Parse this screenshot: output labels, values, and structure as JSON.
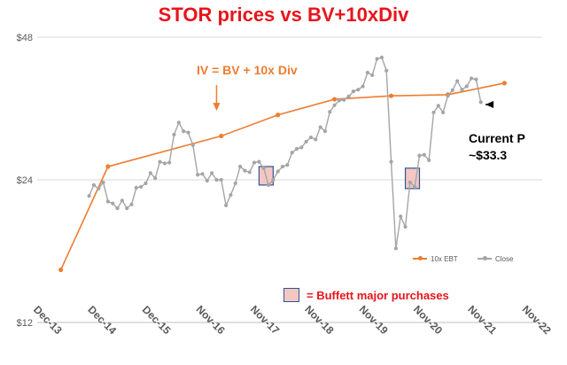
{
  "chart_data": {
    "type": "line",
    "title": "STOR prices vs BV+10xDiv",
    "x_tick_labels": [
      "Dec-13",
      "Dec-14",
      "Dec-15",
      "Nov-16",
      "Nov-17",
      "Nov-18",
      "Nov-19",
      "Nov-20",
      "Nov-21",
      "Nov-22"
    ],
    "y_tick_labels": [
      "$12",
      "$24",
      "$48"
    ],
    "y_scale": "log",
    "ylim": [
      12,
      48
    ],
    "series": [
      {
        "name": "10x EBT",
        "color": "#ed7d31",
        "points": [
          [
            "2014-05",
            15.5
          ],
          [
            "2015-03",
            25.6
          ],
          [
            "2017-03",
            29.7
          ],
          [
            "2018-03",
            32.9
          ],
          [
            "2019-03",
            35.5
          ],
          [
            "2020-03",
            36.1
          ],
          [
            "2021-03",
            36.3
          ],
          [
            "2022-03",
            38.4
          ]
        ]
      },
      {
        "name": "Close",
        "color": "#a5a5a5",
        "points": [
          [
            "2014-11",
            22.2
          ],
          [
            "2014-12",
            23.4
          ],
          [
            "2015-01",
            23.0
          ],
          [
            "2015-02",
            23.7
          ],
          [
            "2015-03",
            21.6
          ],
          [
            "2015-04",
            21.4
          ],
          [
            "2015-05",
            20.9
          ],
          [
            "2015-06",
            21.7
          ],
          [
            "2015-07",
            20.9
          ],
          [
            "2015-08",
            21.3
          ],
          [
            "2015-09",
            23.1
          ],
          [
            "2015-10",
            23.2
          ],
          [
            "2015-11",
            23.6
          ],
          [
            "2015-12",
            24.8
          ],
          [
            "2016-01",
            24.2
          ],
          [
            "2016-02",
            26.2
          ],
          [
            "2016-03",
            26.0
          ],
          [
            "2016-04",
            26.1
          ],
          [
            "2016-05",
            29.9
          ],
          [
            "2016-06",
            31.7
          ],
          [
            "2016-07",
            30.4
          ],
          [
            "2016-08",
            30.2
          ],
          [
            "2016-09",
            28.4
          ],
          [
            "2016-10",
            24.6
          ],
          [
            "2016-11",
            24.7
          ],
          [
            "2016-12",
            23.9
          ],
          [
            "2017-01",
            24.8
          ],
          [
            "2017-02",
            24.0
          ],
          [
            "2017-03",
            24.0
          ],
          [
            "2017-04",
            21.2
          ],
          [
            "2017-05",
            22.3
          ],
          [
            "2017-06",
            23.6
          ],
          [
            "2017-07",
            25.6
          ],
          [
            "2017-08",
            25.1
          ],
          [
            "2017-09",
            24.9
          ],
          [
            "2017-10",
            26.1
          ],
          [
            "2017-11",
            26.2
          ],
          [
            "2017-12",
            25.4
          ],
          [
            "2018-01",
            23.4
          ],
          [
            "2018-02",
            24.0
          ],
          [
            "2018-03",
            25.0
          ],
          [
            "2018-04",
            25.6
          ],
          [
            "2018-05",
            25.8
          ],
          [
            "2018-06",
            27.4
          ],
          [
            "2018-07",
            27.9
          ],
          [
            "2018-08",
            28.1
          ],
          [
            "2018-09",
            28.9
          ],
          [
            "2018-10",
            29.5
          ],
          [
            "2018-11",
            29.2
          ],
          [
            "2018-12",
            31.0
          ],
          [
            "2019-01",
            30.4
          ],
          [
            "2019-02",
            33.4
          ],
          [
            "2019-03",
            34.5
          ],
          [
            "2019-04",
            35.3
          ],
          [
            "2019-05",
            35.4
          ],
          [
            "2019-06",
            36.0
          ],
          [
            "2019-07",
            36.9
          ],
          [
            "2019-08",
            37.2
          ],
          [
            "2019-09",
            37.8
          ],
          [
            "2019-10",
            40.4
          ],
          [
            "2019-11",
            39.9
          ],
          [
            "2019-12",
            43.2
          ],
          [
            "2020-01",
            43.5
          ],
          [
            "2020-02",
            40.8
          ],
          [
            "2020-03",
            26.2
          ],
          [
            "2020-04",
            17.2
          ],
          [
            "2020-05",
            20.1
          ],
          [
            "2020-06",
            19.1
          ],
          [
            "2020-07",
            23.7
          ],
          [
            "2020-08",
            23.2
          ],
          [
            "2020-09",
            27.0
          ],
          [
            "2020-10",
            27.1
          ],
          [
            "2020-11",
            26.4
          ],
          [
            "2020-12",
            33.3
          ],
          [
            "2021-01",
            34.4
          ],
          [
            "2021-02",
            33.3
          ],
          [
            "2021-03",
            36.1
          ],
          [
            "2021-04",
            37.1
          ],
          [
            "2021-05",
            38.8
          ],
          [
            "2021-06",
            37.2
          ],
          [
            "2021-07",
            37.8
          ],
          [
            "2021-08",
            39.3
          ],
          [
            "2021-09",
            39.1
          ],
          [
            "2021-10",
            35.0
          ]
        ]
      }
    ],
    "buffett_purchases": [
      {
        "x_range": [
          "2017-11",
          "2018-02"
        ],
        "y_range": [
          23.4,
          25.6
        ]
      },
      {
        "x_range": [
          "2020-06",
          "2020-09"
        ],
        "y_range": [
          23.0,
          25.4
        ]
      }
    ],
    "annotations": [
      {
        "text": "IV = BV + 10x Div",
        "color": "#ed7d31",
        "arrow_to": [
          "2017-02",
          30.0
        ]
      },
      {
        "text": "Current P\n~$33.3",
        "color": "#000000",
        "arrow_to": [
          "2021-11",
          34.6
        ]
      }
    ],
    "buffett_legend_text": "= Buffett major purchases",
    "grid": "horizontal",
    "legend_position": "bottom-right"
  }
}
